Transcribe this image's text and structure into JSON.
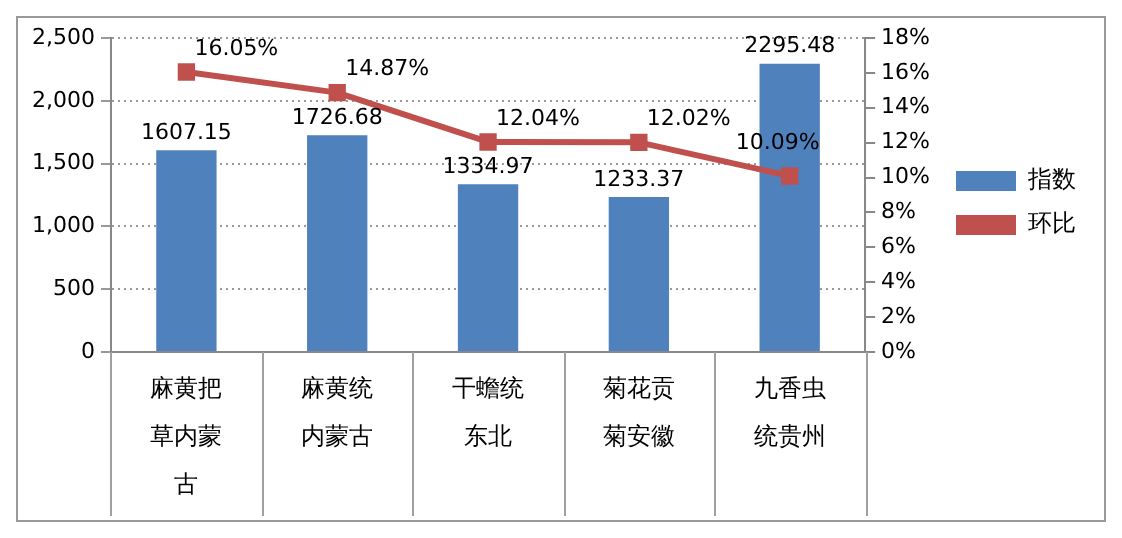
{
  "chart_data": {
    "type": "bar",
    "categories": [
      "麻黄把草内蒙古",
      "麻黄统内蒙古",
      "干蟾统东北",
      "菊花贡菊安徽",
      "九香虫统贵州"
    ],
    "series": [
      {
        "name": "指数",
        "color": "#4f81bd",
        "values": [
          1607.15,
          1726.68,
          1334.97,
          1233.37,
          2295.48
        ],
        "value_labels": [
          "1607.15",
          "1726.68",
          "1334.97",
          "1233.37",
          "2295.48"
        ]
      },
      {
        "name": "环比",
        "type": "line",
        "axis": "y2",
        "color": "#c0504d",
        "marker": "square",
        "values": [
          16.05,
          14.87,
          12.04,
          12.02,
          10.09
        ],
        "value_labels": [
          "16.05%",
          "14.87%",
          "12.04%",
          "12.02%",
          "10.09%"
        ]
      }
    ],
    "ylim": [
      0,
      2500
    ],
    "yticks": [
      0,
      500,
      {
        "value": 1000,
        "label": "1,000"
      },
      {
        "value": 1500,
        "label": "1,500"
      },
      {
        "value": 2000,
        "label": "2,000"
      },
      {
        "value": 2500,
        "label": "2,500"
      }
    ],
    "y2lim": [
      0,
      18
    ],
    "y2ticks": [
      {
        "value": 0,
        "label": "0%"
      },
      {
        "value": 2,
        "label": "2%"
      },
      {
        "value": 4,
        "label": "4%"
      },
      {
        "value": 6,
        "label": "6%"
      },
      {
        "value": 8,
        "label": "8%"
      },
      {
        "value": 10,
        "label": "10%"
      },
      {
        "value": 12,
        "label": "12%"
      },
      {
        "value": 14,
        "label": "14%"
      },
      {
        "value": 16,
        "label": "16%"
      },
      {
        "value": 18,
        "label": "18%"
      }
    ],
    "grid": "y",
    "legend": "right"
  }
}
